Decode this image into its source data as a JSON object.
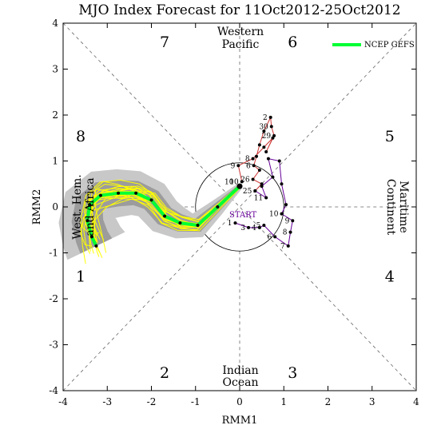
{
  "chart_data": {
    "type": "line",
    "title": "MJO Index Forecast for 11Oct2012-25Oct2012",
    "xlabel": "RMM1",
    "ylabel": "RMM2",
    "xlim": [
      -4,
      4
    ],
    "ylim": [
      -4,
      4
    ],
    "xticks": [
      "-4",
      "-3",
      "-2",
      "-1",
      "0",
      "1",
      "2",
      "3",
      "4"
    ],
    "yticks": [
      "-4",
      "-3",
      "-2",
      "-1",
      "0",
      "1",
      "2",
      "3",
      "4"
    ],
    "phases": [
      {
        "label": "1",
        "x": -3.6,
        "y": -1.5
      },
      {
        "label": "2",
        "x": -1.7,
        "y": -3.6
      },
      {
        "label": "3",
        "x": 1.2,
        "y": -3.6
      },
      {
        "label": "4",
        "x": 3.4,
        "y": -1.5
      },
      {
        "label": "5",
        "x": 3.4,
        "y": 1.55
      },
      {
        "label": "6",
        "x": 1.2,
        "y": 3.6
      },
      {
        "label": "7",
        "x": -1.7,
        "y": 3.6
      },
      {
        "label": "8",
        "x": -3.6,
        "y": 1.55
      }
    ],
    "regions": {
      "top": [
        "Western",
        "Pacific"
      ],
      "bottom": [
        "Indian",
        "Ocean"
      ],
      "left": [
        "West. Hem.",
        "and Africa"
      ],
      "right": [
        "Maritime",
        "Continent"
      ]
    },
    "legend": {
      "label": "NCEP GEFS",
      "color": "#00ff33",
      "position": "top-right"
    },
    "start_label": "START",
    "observed": {
      "sep_color": "#cc3333",
      "sep_points": [
        {
          "x": 0.05,
          "y": 0.55,
          "label": "10"
        },
        {
          "x": -0.03,
          "y": 0.9,
          "label": "9"
        },
        {
          "x": 0.3,
          "y": 1.05,
          "label": "8"
        },
        {
          "x": 0.55,
          "y": 1.3
        },
        {
          "x": 0.75,
          "y": 1.5
        },
        {
          "x": 0.6,
          "y": 1.2
        },
        {
          "x": 0.78,
          "y": 1.55,
          "label": "29"
        },
        {
          "x": 0.72,
          "y": 1.75,
          "label": "30"
        },
        {
          "x": 0.7,
          "y": 1.95,
          "label": "2"
        },
        {
          "x": 0.55,
          "y": 1.65
        },
        {
          "x": 0.45,
          "y": 1.35
        },
        {
          "x": 0.38,
          "y": 1.1
        },
        {
          "x": 0.32,
          "y": 0.9,
          "label": "6"
        },
        {
          "x": 0.45,
          "y": 0.8
        },
        {
          "x": 0.3,
          "y": 0.6,
          "label": "26"
        },
        {
          "x": 0.5,
          "y": 0.5
        },
        {
          "x": 0.35,
          "y": 0.35,
          "label": "25"
        }
      ],
      "oct_color": "#660099",
      "oct_points": [
        {
          "x": 0.35,
          "y": 0.35
        },
        {
          "x": 0.6,
          "y": 0.2,
          "label": "11"
        },
        {
          "x": 0.5,
          "y": 0.45
        },
        {
          "x": 0.75,
          "y": 0.65
        },
        {
          "x": 0.65,
          "y": 1.05
        },
        {
          "x": 0.9,
          "y": 1.0
        },
        {
          "x": 0.95,
          "y": 0.5
        },
        {
          "x": 1.05,
          "y": 0.05
        },
        {
          "x": 0.95,
          "y": -0.15,
          "label": "10"
        },
        {
          "x": 1.2,
          "y": -0.3,
          "label": "9"
        },
        {
          "x": 1.15,
          "y": -0.55,
          "label": "8"
        },
        {
          "x": 1.1,
          "y": -0.85,
          "label": "7"
        },
        {
          "x": 0.8,
          "y": -0.65,
          "label": "6"
        },
        {
          "x": 0.55,
          "y": -0.4,
          "label": "5"
        },
        {
          "x": 0.45,
          "y": -0.45,
          "label": "4"
        },
        {
          "x": 0.2,
          "y": -0.45,
          "label": "3"
        },
        {
          "x": -0.1,
          "y": -0.35,
          "label": "1"
        }
      ]
    },
    "series": [
      {
        "name": "NCEP GEFS",
        "color": "#00ff33",
        "x": [
          0.0,
          -0.5,
          -0.95,
          -1.35,
          -1.7,
          -2.0,
          -2.35,
          -2.75,
          -3.15,
          -3.4,
          -3.45,
          -3.35,
          -3.25
        ],
        "y": [
          0.45,
          0.0,
          -0.4,
          -0.35,
          -0.2,
          0.15,
          0.3,
          0.3,
          0.25,
          0.05,
          -0.3,
          -0.65,
          -0.85
        ]
      }
    ],
    "forecast_dates": [
      {
        "x": -0.1,
        "y": 0.55,
        "label": "10"
      }
    ]
  }
}
